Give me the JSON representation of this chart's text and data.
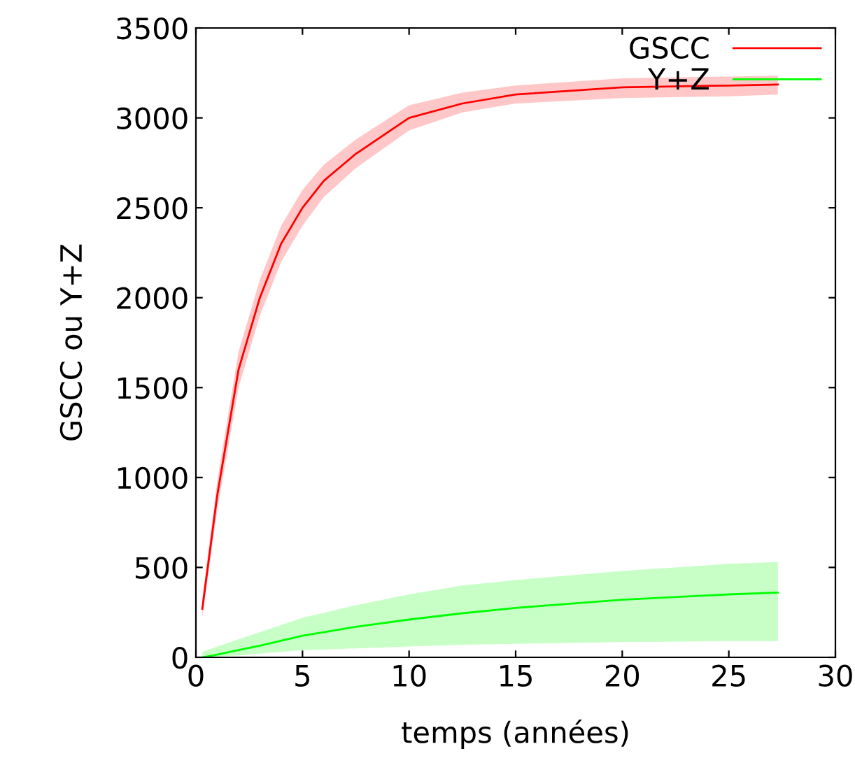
{
  "chart_data": {
    "type": "line",
    "xlabel": "temps (années)",
    "ylabel": "GSCC ou Y+Z",
    "xlim": [
      0,
      30
    ],
    "xticks": [
      0,
      5,
      10,
      15,
      20,
      25,
      30
    ],
    "ylim": [
      0,
      3500
    ],
    "yticks": [
      0,
      500,
      1000,
      1500,
      2000,
      2500,
      3000,
      3500
    ],
    "grid": false,
    "legend": "top right",
    "line_style": "solid",
    "marker": "none",
    "series": [
      {
        "name": "GSCC",
        "color": "#ff0000",
        "x": [
          0.3,
          1,
          2,
          3,
          4,
          5,
          6,
          7.5,
          10,
          12.5,
          15,
          20,
          25,
          27.3
        ],
        "values": [
          270,
          900,
          1600,
          2000,
          2300,
          2500,
          2650,
          2800,
          3000,
          3080,
          3130,
          3170,
          3180,
          3185
        ],
        "lower": [
          220,
          820,
          1500,
          1900,
          2200,
          2400,
          2560,
          2720,
          2930,
          3030,
          3080,
          3110,
          3120,
          3130
        ],
        "upper": [
          330,
          980,
          1700,
          2100,
          2400,
          2600,
          2740,
          2880,
          3070,
          3140,
          3180,
          3220,
          3230,
          3235
        ]
      },
      {
        "name": "Y+Z",
        "color": "#00ff00",
        "x": [
          0.3,
          1,
          2,
          3,
          5,
          7.5,
          10,
          12.5,
          15,
          20,
          25,
          27.3
        ],
        "values": [
          0,
          15,
          40,
          65,
          120,
          170,
          210,
          245,
          275,
          320,
          350,
          360
        ],
        "lower": [
          0,
          5,
          10,
          20,
          40,
          50,
          60,
          70,
          75,
          85,
          90,
          90
        ],
        "upper": [
          30,
          60,
          100,
          140,
          220,
          290,
          350,
          400,
          430,
          480,
          520,
          530
        ]
      }
    ]
  }
}
